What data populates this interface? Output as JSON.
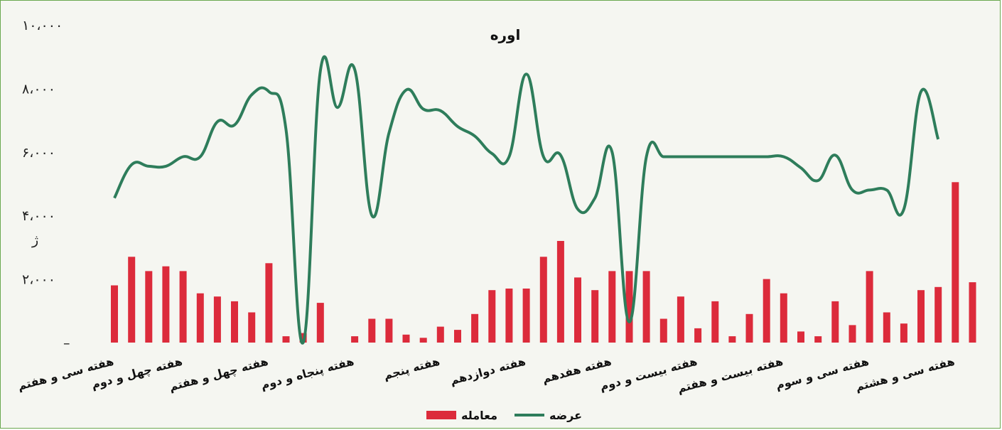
{
  "chart_data": {
    "type": "bar",
    "title": "اوره",
    "ylim": [
      0,
      10000
    ],
    "yticks": [
      {
        "value": 0,
        "label": "–"
      },
      {
        "value": 2000,
        "label": "۲،۰۰۰"
      },
      {
        "value": 4000,
        "label": "۴،۰۰۰"
      },
      {
        "value": 6000,
        "label": "۶،۰۰۰"
      },
      {
        "value": 8000,
        "label": "۸،۰۰۰"
      },
      {
        "value": 10000,
        "label": "۱۰،۰۰۰"
      }
    ],
    "stray_label": "ژ",
    "legend": [
      {
        "name": "معامله",
        "color": "#dc2b3b",
        "kind": "bar"
      },
      {
        "name": "عرضه",
        "color": "#2e7d5b",
        "kind": "line"
      }
    ],
    "x_labels": [
      {
        "index": 0,
        "text": "هفته سی و هفتم"
      },
      {
        "index": 4,
        "text": "هفته چهل و دوم"
      },
      {
        "index": 9,
        "text": "هفته چهل و هفتم"
      },
      {
        "index": 14,
        "text": "هفته پنجاه و دوم"
      },
      {
        "index": 19,
        "text": "هفته پنجم"
      },
      {
        "index": 24,
        "text": "هفته دوازدهم"
      },
      {
        "index": 29,
        "text": "هفته هفدهم"
      },
      {
        "index": 34,
        "text": "هفته بیست و دوم"
      },
      {
        "index": 39,
        "text": "هفته بیست و هفتم"
      },
      {
        "index": 44,
        "text": "هفته سی و سوم"
      },
      {
        "index": 49,
        "text": "هفته سی و هشتم"
      }
    ],
    "series": [
      {
        "name": "معامله",
        "values": [
          1800,
          2700,
          2250,
          2400,
          2250,
          1550,
          1450,
          1300,
          950,
          2500,
          200,
          300,
          1250,
          0,
          200,
          750,
          750,
          250,
          150,
          500,
          400,
          900,
          1650,
          1700,
          1700,
          2700,
          3200,
          2050,
          1650,
          2250,
          2250,
          2250,
          750,
          1450,
          450,
          1300,
          200,
          900,
          2000,
          1550,
          350,
          200,
          1300,
          550,
          2250,
          950,
          600,
          1650,
          1750,
          5050,
          1900
        ]
      },
      {
        "name": "عرضه",
        "values": [
          4550,
          5600,
          5550,
          5550,
          5850,
          5850,
          6950,
          6850,
          7800,
          7900,
          6700,
          0,
          8550,
          7400,
          8600,
          4000,
          6600,
          7950,
          7350,
          7300,
          6800,
          6500,
          5950,
          5850,
          8450,
          5850,
          5900,
          4200,
          4550,
          6000,
          650,
          5850,
          5850,
          5850,
          5850,
          5850,
          5850,
          5850,
          5850,
          5850,
          5500,
          5100,
          5900,
          4800,
          4800,
          4800,
          4200,
          7900,
          6400
        ]
      }
    ]
  }
}
